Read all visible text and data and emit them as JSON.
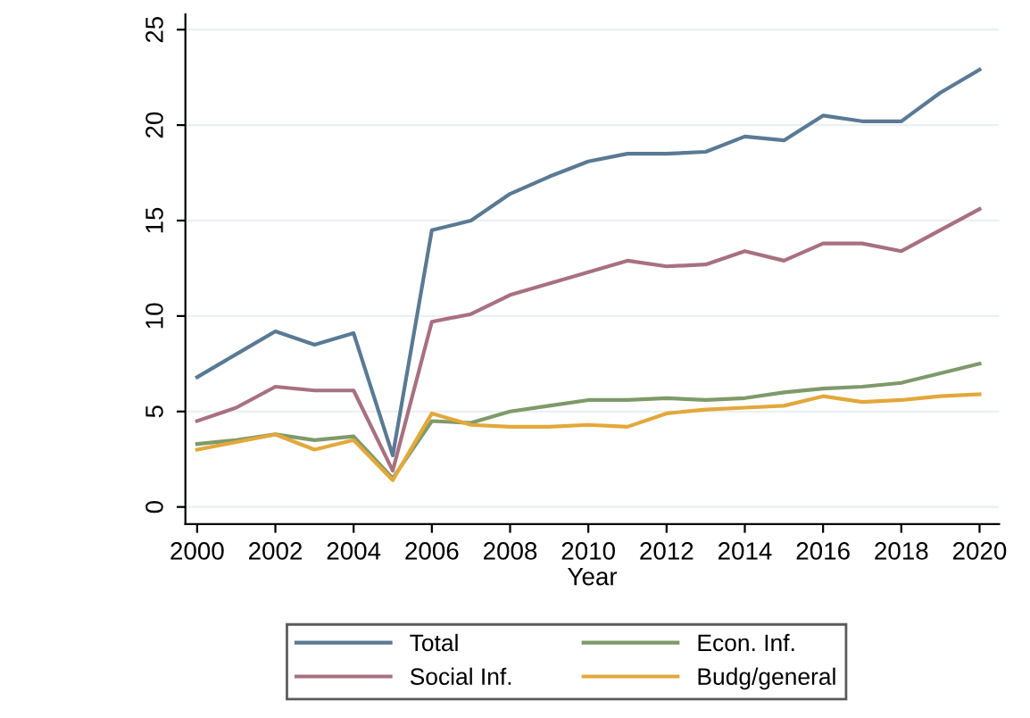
{
  "chart_data": {
    "type": "line",
    "xlabel": "Year",
    "x": [
      2000,
      2001,
      2002,
      2003,
      2004,
      2005,
      2006,
      2007,
      2008,
      2009,
      2010,
      2011,
      2012,
      2013,
      2014,
      2015,
      2016,
      2017,
      2018,
      2019,
      2020
    ],
    "series": [
      {
        "name": "Total",
        "color": "#5a7a94",
        "values": [
          6.8,
          8.0,
          9.2,
          8.5,
          9.1,
          2.7,
          14.5,
          15.0,
          16.4,
          17.3,
          18.1,
          18.5,
          18.5,
          18.6,
          19.4,
          19.2,
          20.5,
          20.2,
          20.2,
          21.7,
          22.9
        ]
      },
      {
        "name": "Social Inf.",
        "color": "#a87080",
        "values": [
          4.5,
          5.2,
          6.3,
          6.1,
          6.1,
          1.9,
          9.7,
          10.1,
          11.1,
          11.7,
          12.3,
          12.9,
          12.6,
          12.7,
          13.4,
          12.9,
          13.8,
          13.8,
          13.4,
          14.5,
          15.6
        ]
      },
      {
        "name": "Econ. Inf.",
        "color": "#7f9a6a",
        "values": [
          3.3,
          3.5,
          3.8,
          3.5,
          3.7,
          1.5,
          4.5,
          4.4,
          5.0,
          5.3,
          5.6,
          5.6,
          5.7,
          5.6,
          5.7,
          6.0,
          6.2,
          6.3,
          6.5,
          7.0,
          7.5
        ]
      },
      {
        "name": "Budg/general",
        "color": "#e3a83a",
        "values": [
          3.0,
          3.4,
          3.8,
          3.0,
          3.5,
          1.4,
          4.9,
          4.3,
          4.2,
          4.2,
          4.3,
          4.2,
          4.9,
          5.1,
          5.2,
          5.3,
          5.8,
          5.5,
          5.6,
          5.8,
          5.9
        ]
      }
    ],
    "xlim": [
      1999.7,
      2020.5
    ],
    "ylim": [
      -0.9,
      25.8
    ],
    "xticks": [
      2000,
      2002,
      2004,
      2006,
      2008,
      2010,
      2012,
      2014,
      2016,
      2018,
      2020
    ],
    "yticks": [
      0,
      5,
      10,
      15,
      20,
      25
    ],
    "grid": "y",
    "legend": "bottom",
    "marker": "none",
    "line_style": "solid"
  }
}
